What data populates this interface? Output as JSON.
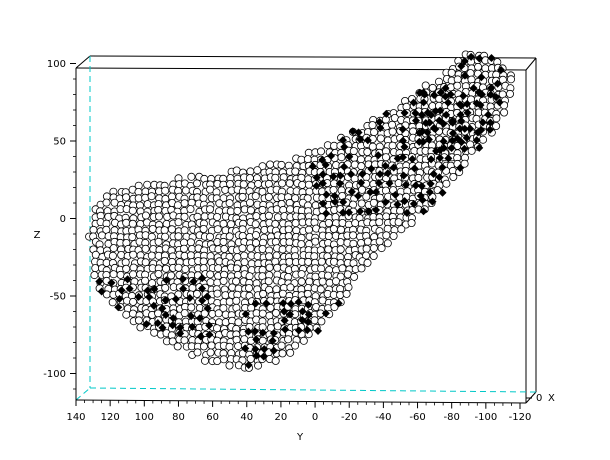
{
  "chart_data": {
    "type": "scatter",
    "title": "",
    "xlabel": "X",
    "ylabel": "Y",
    "zlabel": "Z",
    "projection": "3d-viewed-along-x",
    "y_axis": {
      "lim": [
        140,
        -120
      ],
      "ticks": [
        140,
        120,
        100,
        80,
        60,
        40,
        20,
        0,
        -20,
        -40,
        -60,
        -80,
        -100,
        -120
      ],
      "tick_labels": [
        "140",
        "120",
        "100",
        "80",
        "60",
        "40",
        "20",
        "0",
        "-20",
        "-40",
        "-60",
        "-80",
        "-100",
        "-120"
      ]
    },
    "z_axis": {
      "lim": [
        -120,
        140
      ],
      "ticks": [
        -100,
        -50,
        0,
        50,
        100
      ],
      "tick_labels": [
        "-100",
        "-50",
        "0",
        "50",
        "100"
      ]
    },
    "x_axis": {
      "tick_labels": [
        "0"
      ]
    },
    "grid": false,
    "series": [
      {
        "marker": "circle",
        "color": "#ffffff",
        "outline": "#000000",
        "description_shape_outline_yz": [
          [
            133,
            -2
          ],
          [
            128,
            8
          ],
          [
            120,
            18
          ],
          [
            100,
            22
          ],
          [
            80,
            26
          ],
          [
            60,
            29
          ],
          [
            40,
            32
          ],
          [
            20,
            37
          ],
          [
            0,
            45
          ],
          [
            -20,
            55
          ],
          [
            -40,
            68
          ],
          [
            -60,
            82
          ],
          [
            -75,
            95
          ],
          [
            -85,
            105
          ],
          [
            -92,
            110
          ],
          [
            -100,
            108
          ],
          [
            -112,
            98
          ],
          [
            -117,
            88
          ],
          [
            -113,
            70
          ],
          [
            -100,
            50
          ],
          [
            -85,
            30
          ],
          [
            -70,
            10
          ],
          [
            -55,
            -5
          ],
          [
            -40,
            -20
          ],
          [
            -25,
            -35
          ],
          [
            -18,
            -50
          ],
          [
            -10,
            -62
          ],
          [
            0,
            -75
          ],
          [
            10,
            -85
          ],
          [
            25,
            -93
          ],
          [
            40,
            -97
          ],
          [
            55,
            -95
          ],
          [
            70,
            -90
          ],
          [
            90,
            -80
          ],
          [
            110,
            -65
          ],
          [
            125,
            -48
          ],
          [
            133,
            -30
          ]
        ]
      },
      {
        "marker": "diamond",
        "color": "#000000",
        "regions_yz": [
          {
            "name": "",
            "y_range": [
              -60,
              -110
            ],
            "z_range": [
              40,
              132
            ]
          },
          {
            "name": "",
            "y_range": [
              40,
              -20
            ],
            "z_range": [
              -98,
              -55
            ]
          },
          {
            "name": "",
            "y_range": [
              125,
              60
            ],
            "z_range": [
              -80,
              -40
            ]
          },
          {
            "name": "",
            "y_range": [
              0,
              -100
            ],
            "z_range": [
              0,
              80
            ]
          }
        ]
      }
    ]
  }
}
